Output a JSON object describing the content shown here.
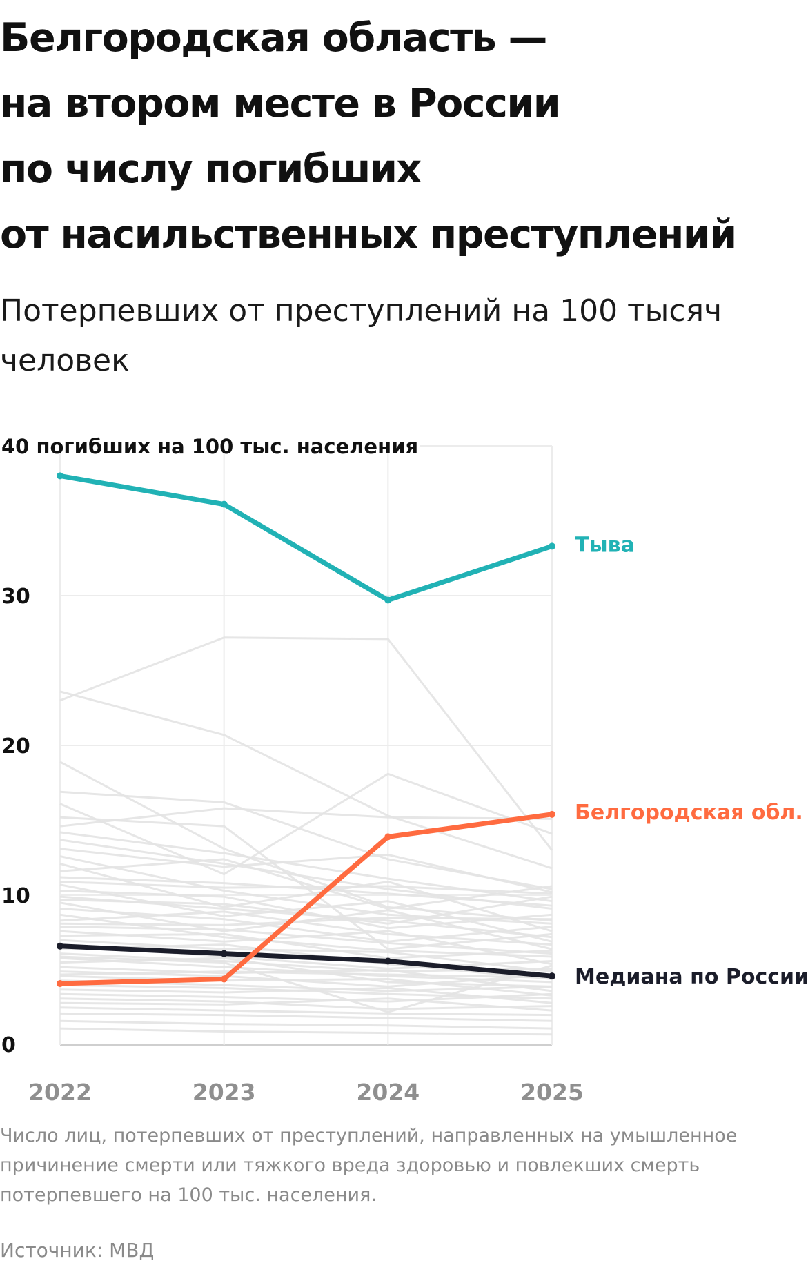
{
  "title_lines": [
    "Белгородская область —",
    "на втором месте в России",
    "по числу погибших",
    "от насильственных преступлений"
  ],
  "subtitle_lines": [
    "Потерпевших от преступлений на 100 тысяч",
    "человек"
  ],
  "note_lines": [
    "Число лиц, потерпевших от преступлений, направленных на умышленное",
    "причинение смерти или тяжкого вреда здоровью и повлекших смерть",
    "потерпевшего на 100 тыс. населения."
  ],
  "source": "Источник: МВД",
  "chart_data": {
    "type": "line",
    "x": [
      "2022",
      "2023",
      "2024",
      "2025"
    ],
    "ylim": [
      0,
      40
    ],
    "yticks": [
      {
        "value": 40,
        "label": "40 погибших на 100 тыс. населения"
      },
      {
        "value": 30,
        "label": "30"
      },
      {
        "value": 20,
        "label": "20"
      },
      {
        "value": 10,
        "label": "10"
      },
      {
        "value": 0,
        "label": "0"
      }
    ],
    "grid": true,
    "highlighted_series": [
      {
        "name": "Тыва",
        "values": [
          38.0,
          36.1,
          29.7,
          33.3
        ],
        "color": "#21b2b5"
      },
      {
        "name": "Белгородская обл.",
        "values": [
          4.1,
          4.4,
          13.9,
          15.4
        ],
        "color": "#ff6b40"
      },
      {
        "name": "Медиана по России",
        "values": [
          6.6,
          6.1,
          5.6,
          4.6
        ],
        "color": "#1b1d2a"
      }
    ],
    "background_series_color": "#e3e3e3",
    "background_series": [
      [
        23.0,
        27.2,
        27.1,
        13.0
      ],
      [
        23.6,
        20.7,
        15.3,
        11.8
      ],
      [
        18.9,
        13.1,
        9.2,
        8.3
      ],
      [
        16.9,
        16.2,
        12.4,
        10.4
      ],
      [
        16.1,
        11.4,
        18.1,
        14.1
      ],
      [
        15.2,
        14.6,
        6.4,
        7.4
      ],
      [
        14.6,
        15.8,
        15.2,
        15.1
      ],
      [
        14.2,
        12.8,
        11.1,
        9.6
      ],
      [
        13.7,
        12.1,
        10.4,
        9.1
      ],
      [
        13.1,
        11.9,
        12.7,
        10.2
      ],
      [
        12.6,
        10.3,
        8.7,
        8.1
      ],
      [
        12.1,
        9.2,
        10.9,
        7.6
      ],
      [
        11.6,
        12.4,
        9.1,
        10.6
      ],
      [
        11.2,
        10.8,
        10.1,
        9.3
      ],
      [
        10.7,
        8.6,
        9.6,
        6.9
      ],
      [
        10.3,
        9.9,
        7.8,
        8.7
      ],
      [
        9.9,
        9.1,
        8.3,
        7.2
      ],
      [
        9.5,
        7.6,
        9.0,
        6.4
      ],
      [
        9.1,
        8.4,
        6.9,
        7.9
      ],
      [
        8.7,
        7.2,
        6.3,
        5.9
      ],
      [
        8.3,
        8.9,
        7.4,
        6.7
      ],
      [
        7.9,
        7.7,
        6.8,
        6.1
      ],
      [
        7.6,
        6.9,
        7.6,
        5.4
      ],
      [
        7.3,
        7.4,
        5.8,
        6.3
      ],
      [
        7.0,
        6.4,
        6.2,
        4.9
      ],
      [
        6.7,
        5.9,
        5.1,
        5.6
      ],
      [
        6.4,
        6.7,
        5.4,
        4.4
      ],
      [
        6.1,
        5.6,
        4.9,
        5.1
      ],
      [
        5.8,
        5.2,
        4.6,
        4.2
      ],
      [
        5.5,
        5.8,
        4.2,
        3.9
      ],
      [
        5.2,
        4.8,
        5.0,
        3.6
      ],
      [
        4.9,
        4.6,
        3.9,
        4.7
      ],
      [
        4.6,
        4.3,
        4.4,
        3.3
      ],
      [
        4.3,
        4.0,
        3.6,
        3.9
      ],
      [
        4.0,
        3.8,
        3.4,
        3.1
      ],
      [
        3.7,
        3.5,
        3.8,
        2.8
      ],
      [
        3.4,
        3.2,
        2.9,
        3.4
      ],
      [
        3.1,
        2.9,
        2.4,
        2.6
      ],
      [
        2.8,
        2.7,
        3.1,
        2.3
      ],
      [
        2.5,
        2.3,
        2.1,
        2.0
      ],
      [
        2.1,
        2.0,
        1.8,
        1.6
      ],
      [
        1.6,
        1.4,
        1.3,
        1.1
      ],
      [
        1.1,
        0.9,
        0.8,
        0.7
      ],
      [
        10.9,
        10.5,
        10.6,
        10.1
      ],
      [
        9.7,
        9.4,
        8.1,
        9.9
      ],
      [
        8.1,
        8.0,
        8.5,
        8.4
      ],
      [
        5.9,
        5.5,
        2.2,
        5.3
      ],
      [
        4.7,
        4.9,
        4.7,
        4.5
      ]
    ]
  }
}
